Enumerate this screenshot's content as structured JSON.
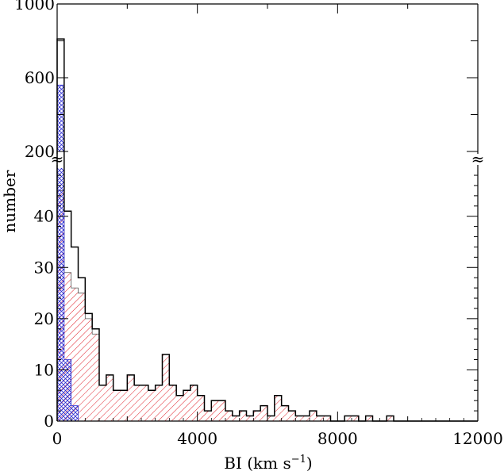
{
  "chart_data": {
    "type": "bar",
    "title": "",
    "xlabel": "BI (km s",
    "xlabel_superscript": "−1",
    "xlabel_suffix": ")",
    "ylabel": "number",
    "xlim": [
      0,
      12000
    ],
    "x_ticks": [
      0,
      4000,
      8000,
      12000
    ],
    "y_upper_range": [
      200,
      1000
    ],
    "y_upper_ticks": [
      200,
      600,
      1000
    ],
    "y_lower_range": [
      0,
      50
    ],
    "y_lower_ticks": [
      0,
      10,
      20,
      30,
      40
    ],
    "axis_break_symbol": "≈",
    "bin_width": 200,
    "grid": false,
    "legend": "none",
    "colors": {
      "outline": "#000000",
      "red_hatch": "#e0202a",
      "blue_hatch": "#2a2ad0"
    },
    "series": [
      {
        "style": "outline-black",
        "values": [
          810,
          41,
          34,
          28,
          21,
          18,
          7,
          9,
          6,
          6,
          9,
          7,
          7,
          6,
          7,
          13,
          7,
          5,
          6,
          7,
          5,
          2,
          4,
          4,
          2,
          1,
          2,
          1,
          2,
          3,
          1,
          5,
          3,
          2,
          1,
          1,
          2,
          1,
          1,
          0,
          0,
          1,
          1,
          0,
          1,
          0,
          0,
          1,
          0,
          0,
          0,
          0,
          0,
          0,
          0,
          0,
          0,
          0,
          0,
          0
        ]
      },
      {
        "style": "hatch-red",
        "values": [
          45,
          29,
          26,
          25,
          20,
          17,
          7,
          9,
          6,
          6,
          9,
          7,
          7,
          6,
          7,
          13,
          7,
          5,
          6,
          7,
          5,
          2,
          4,
          4,
          2,
          1,
          2,
          1,
          2,
          3,
          1,
          5,
          3,
          2,
          1,
          1,
          2,
          1,
          1,
          0,
          0,
          1,
          1,
          0,
          1,
          0,
          0,
          1,
          0,
          0,
          0,
          0,
          0,
          0,
          0,
          0,
          0,
          0,
          0,
          0
        ]
      },
      {
        "style": "hatch-blue",
        "values": [
          560,
          12,
          3,
          0,
          0,
          0,
          0,
          0,
          0,
          0,
          0,
          0,
          0,
          0,
          0,
          0,
          0,
          0,
          0,
          0,
          0,
          0,
          0,
          0,
          0,
          0,
          0,
          0,
          0,
          0,
          0,
          0,
          0,
          0,
          0,
          0,
          0,
          0,
          0,
          0,
          0,
          0,
          0,
          0,
          0,
          0,
          0,
          0,
          0,
          0,
          0,
          0,
          0,
          0,
          0,
          0,
          0,
          0,
          0,
          0
        ]
      }
    ]
  }
}
